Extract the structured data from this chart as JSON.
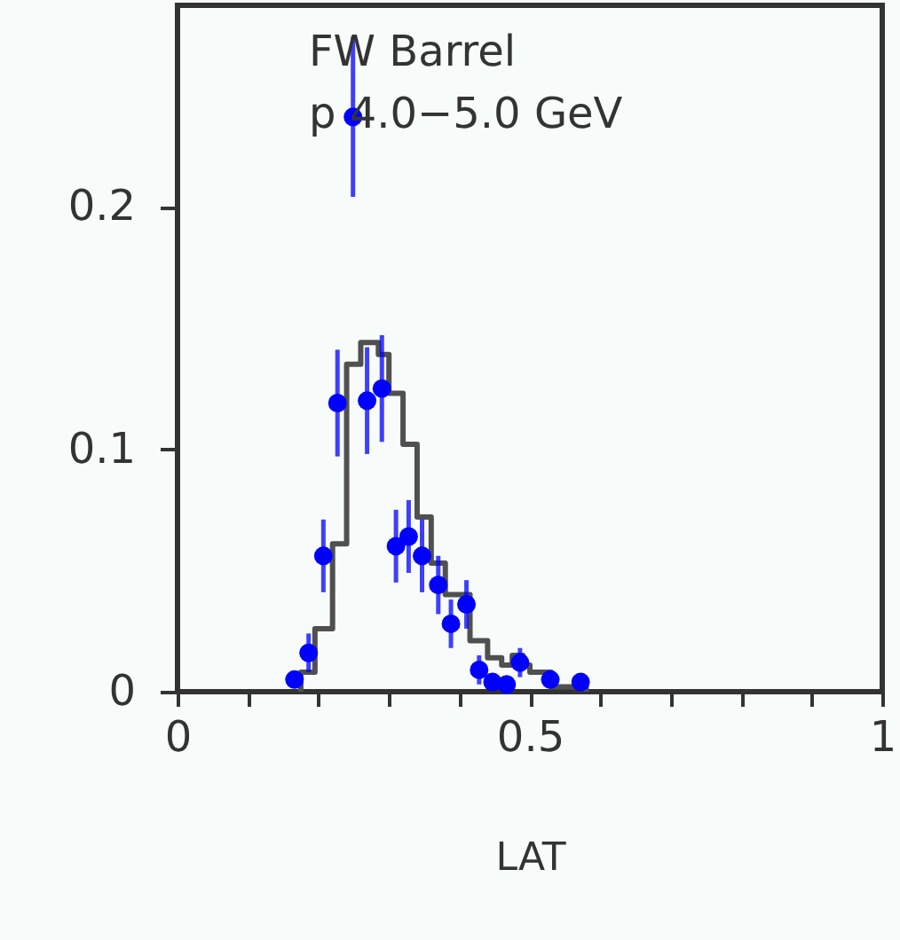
{
  "chart_data": {
    "type": "scatter",
    "xlabel": "LAT",
    "annotations": [
      "FW Barrel",
      "p 4.0−5.0 GeV"
    ],
    "xlim": [
      0,
      1
    ],
    "ylim": [
      0,
      0.283
    ],
    "xticks": [
      0,
      {
        "value": 0.1,
        "label": null
      },
      {
        "value": 0.2,
        "label": null
      },
      {
        "value": 0.3,
        "label": null
      },
      {
        "value": 0.4,
        "label": null
      },
      0.5,
      {
        "value": 0.6,
        "label": null
      },
      {
        "value": 0.7,
        "label": null
      },
      {
        "value": 0.8,
        "label": null
      },
      {
        "value": 0.9,
        "label": null
      },
      1
    ],
    "yticks": [
      0,
      0.1,
      0.2
    ],
    "grid": false,
    "series": [
      {
        "type": "histogram",
        "color": "#505050",
        "bins": [
          0.175,
          0.195,
          0.22,
          0.24,
          0.26,
          0.285,
          0.3,
          0.32,
          0.34,
          0.36,
          0.38,
          0.415,
          0.44,
          0.46,
          0.475,
          0.49,
          0.5,
          0.53,
          0.58
        ],
        "values": [
          0.008,
          0.026,
          0.061,
          0.135,
          0.144,
          0.139,
          0.123,
          0.102,
          0.072,
          0.053,
          0.04,
          0.021,
          0.014,
          0.011,
          0.015,
          0.011,
          0.008,
          0.002
        ]
      },
      {
        "color": "#0000ff",
        "marker": "circle",
        "x": [
          0.166,
          0.186,
          0.207,
          0.227,
          0.249,
          0.269,
          0.29,
          0.31,
          0.328,
          0.347,
          0.37,
          0.388,
          0.41,
          0.428,
          0.447,
          0.467,
          0.486,
          0.529,
          0.572
        ],
        "values": [
          0.005,
          0.016,
          0.056,
          0.119,
          0.237,
          0.12,
          0.125,
          0.06,
          0.064,
          0.056,
          0.044,
          0.028,
          0.036,
          0.009,
          0.004,
          0.003,
          0.012,
          0.005,
          0.004
        ],
        "errors": [
          null,
          0.008,
          0.015,
          0.022,
          0.033,
          0.022,
          0.022,
          0.015,
          0.015,
          0.015,
          0.012,
          0.01,
          0.01,
          0.006,
          null,
          null,
          0.006,
          null,
          null
        ]
      }
    ]
  }
}
